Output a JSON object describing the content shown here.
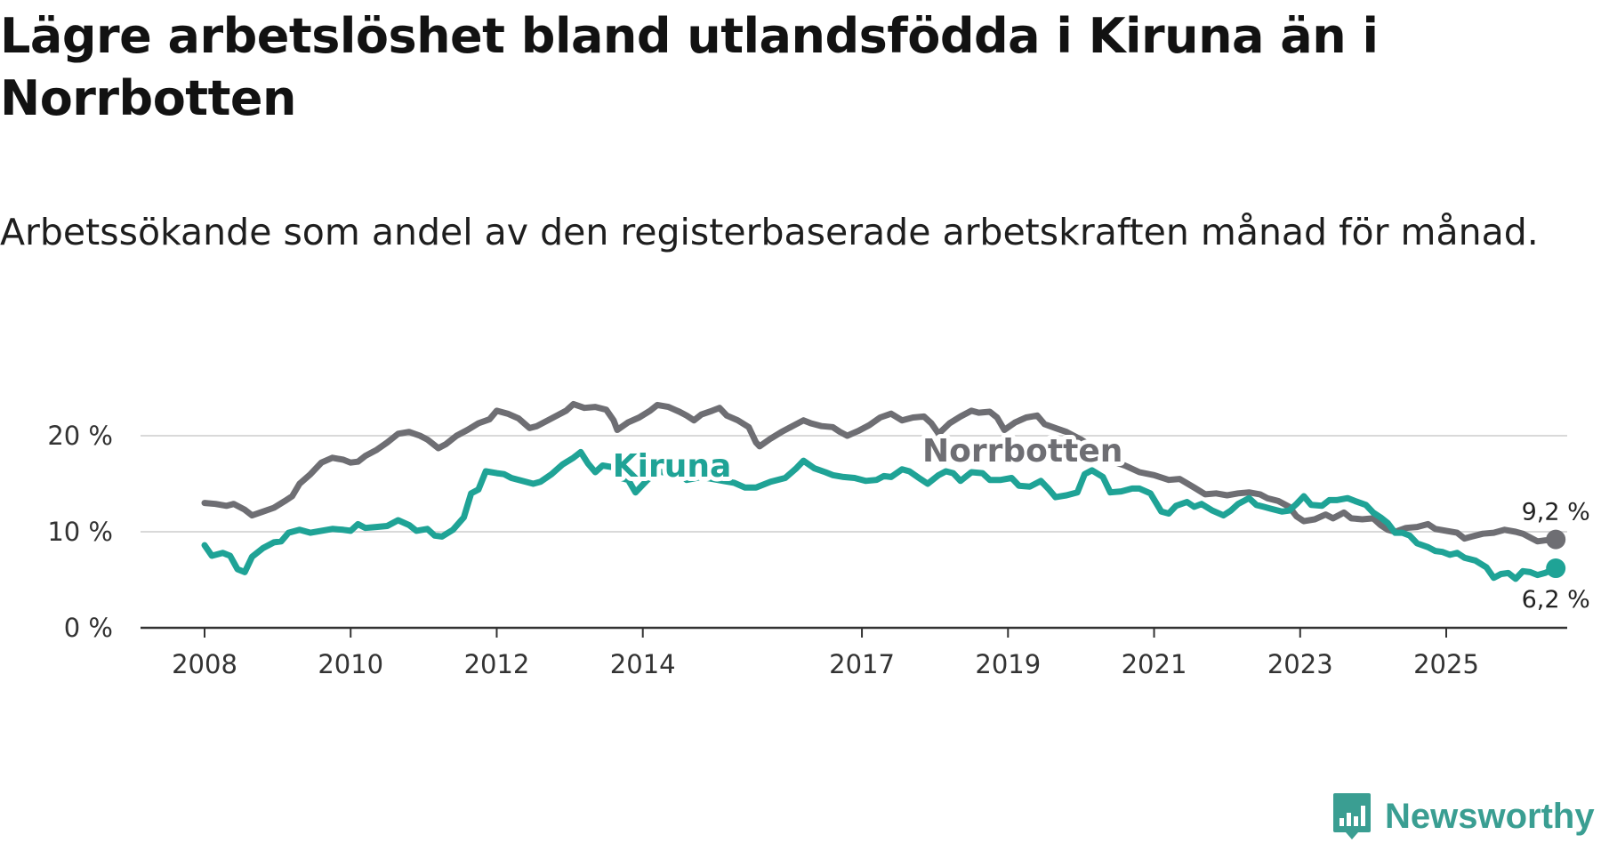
{
  "title": "Lägre arbetslöshet bland utlandsfödda i Kiruna än i Norrbotten",
  "subtitle": "Arbetssökande som andel av den registerbaserade arbetskraften månad för månad.",
  "brand": {
    "name": "Newsworthy",
    "icon": "newsworthy-logo-icon",
    "color": "#3a9e92"
  },
  "chart_data": {
    "type": "line",
    "title": "Lägre arbetslöshet bland utlandsfödda i Kiruna än i Norrbotten",
    "subtitle": "Arbetssökande som andel av den registerbaserade arbetskraften månad för månad.",
    "xlabel": "",
    "ylabel": "",
    "ylim": [
      0,
      22
    ],
    "xlim": [
      2007.6,
      2026.4
    ],
    "y_ticks": [
      {
        "value": 0,
        "label": "0 %"
      },
      {
        "value": 10,
        "label": "10 %"
      },
      {
        "value": 20,
        "label": "20 %"
      }
    ],
    "x_ticks": [
      {
        "value": 2008,
        "label": "2008"
      },
      {
        "value": 2010,
        "label": "2010"
      },
      {
        "value": 2012,
        "label": "2012"
      },
      {
        "value": 2014,
        "label": "2014"
      },
      {
        "value": 2017,
        "label": "2017"
      },
      {
        "value": 2019,
        "label": "2019"
      },
      {
        "value": 2021,
        "label": "2021"
      },
      {
        "value": 2023,
        "label": "2023"
      },
      {
        "value": 2025,
        "label": "2025"
      }
    ],
    "grid": "horizontal",
    "series": [
      {
        "name": "Norrbotten",
        "color": "#6e6e73",
        "label_at": 2019.2,
        "end_label": "9,2 %",
        "points": [
          [
            2008.0,
            13.0
          ],
          [
            2008.15,
            12.9
          ],
          [
            2008.3,
            12.7
          ],
          [
            2008.4,
            12.9
          ],
          [
            2008.55,
            12.3
          ],
          [
            2008.65,
            11.7
          ],
          [
            2008.8,
            12.1
          ],
          [
            2008.95,
            12.5
          ],
          [
            2009.1,
            13.2
          ],
          [
            2009.2,
            13.7
          ],
          [
            2009.3,
            15.0
          ],
          [
            2009.45,
            16.0
          ],
          [
            2009.6,
            17.2
          ],
          [
            2009.75,
            17.7
          ],
          [
            2009.9,
            17.5
          ],
          [
            2010.0,
            17.2
          ],
          [
            2010.1,
            17.3
          ],
          [
            2010.2,
            17.9
          ],
          [
            2010.35,
            18.5
          ],
          [
            2010.5,
            19.3
          ],
          [
            2010.65,
            20.2
          ],
          [
            2010.8,
            20.4
          ],
          [
            2010.95,
            20.0
          ],
          [
            2011.05,
            19.6
          ],
          [
            2011.2,
            18.7
          ],
          [
            2011.3,
            19.1
          ],
          [
            2011.45,
            20.0
          ],
          [
            2011.6,
            20.6
          ],
          [
            2011.75,
            21.3
          ],
          [
            2011.9,
            21.7
          ],
          [
            2012.0,
            22.6
          ],
          [
            2012.15,
            22.3
          ],
          [
            2012.3,
            21.8
          ],
          [
            2012.45,
            20.8
          ],
          [
            2012.55,
            21.0
          ],
          [
            2012.7,
            21.6
          ],
          [
            2012.85,
            22.2
          ],
          [
            2012.95,
            22.6
          ],
          [
            2013.05,
            23.3
          ],
          [
            2013.2,
            22.9
          ],
          [
            2013.35,
            23.0
          ],
          [
            2013.5,
            22.7
          ],
          [
            2013.6,
            21.6
          ],
          [
            2013.65,
            20.6
          ],
          [
            2013.8,
            21.4
          ],
          [
            2013.95,
            21.9
          ],
          [
            2014.1,
            22.6
          ],
          [
            2014.2,
            23.2
          ],
          [
            2014.35,
            23.0
          ],
          [
            2014.5,
            22.5
          ],
          [
            2014.6,
            22.1
          ],
          [
            2014.7,
            21.6
          ],
          [
            2014.8,
            22.2
          ],
          [
            2014.95,
            22.6
          ],
          [
            2015.05,
            22.9
          ],
          [
            2015.15,
            22.1
          ],
          [
            2015.3,
            21.6
          ],
          [
            2015.45,
            20.9
          ],
          [
            2015.55,
            19.3
          ],
          [
            2015.6,
            18.9
          ],
          [
            2015.75,
            19.7
          ],
          [
            2015.9,
            20.4
          ],
          [
            2016.05,
            21.0
          ],
          [
            2016.2,
            21.6
          ],
          [
            2016.3,
            21.3
          ],
          [
            2016.45,
            21.0
          ],
          [
            2016.6,
            20.9
          ],
          [
            2016.7,
            20.4
          ],
          [
            2016.8,
            20.0
          ],
          [
            2016.95,
            20.5
          ],
          [
            2017.1,
            21.1
          ],
          [
            2017.25,
            21.9
          ],
          [
            2017.4,
            22.3
          ],
          [
            2017.55,
            21.6
          ],
          [
            2017.7,
            21.9
          ],
          [
            2017.85,
            22.0
          ],
          [
            2017.95,
            21.3
          ],
          [
            2018.05,
            20.2
          ],
          [
            2018.2,
            21.3
          ],
          [
            2018.35,
            22.0
          ],
          [
            2018.5,
            22.6
          ],
          [
            2018.6,
            22.4
          ],
          [
            2018.75,
            22.5
          ],
          [
            2018.85,
            21.9
          ],
          [
            2018.95,
            20.6
          ],
          [
            2019.1,
            21.4
          ],
          [
            2019.25,
            21.9
          ],
          [
            2019.4,
            22.1
          ],
          [
            2019.5,
            21.2
          ],
          [
            2019.65,
            20.8
          ],
          [
            2019.8,
            20.4
          ],
          [
            2020.0,
            19.6
          ],
          [
            2020.2,
            18.6
          ],
          [
            2020.4,
            17.4
          ],
          [
            2020.6,
            16.9
          ],
          [
            2020.8,
            16.2
          ],
          [
            2021.0,
            15.9
          ],
          [
            2021.2,
            15.4
          ],
          [
            2021.35,
            15.5
          ],
          [
            2021.55,
            14.6
          ],
          [
            2021.7,
            13.9
          ],
          [
            2021.85,
            14.0
          ],
          [
            2022.0,
            13.8
          ],
          [
            2022.15,
            14.0
          ],
          [
            2022.3,
            14.1
          ],
          [
            2022.45,
            13.9
          ],
          [
            2022.55,
            13.5
          ],
          [
            2022.7,
            13.2
          ],
          [
            2022.85,
            12.6
          ],
          [
            2022.95,
            11.6
          ],
          [
            2023.05,
            11.1
          ],
          [
            2023.2,
            11.3
          ],
          [
            2023.35,
            11.8
          ],
          [
            2023.45,
            11.4
          ],
          [
            2023.6,
            12.0
          ],
          [
            2023.7,
            11.4
          ],
          [
            2023.85,
            11.3
          ],
          [
            2024.0,
            11.4
          ],
          [
            2024.1,
            10.7
          ],
          [
            2024.2,
            10.2
          ],
          [
            2024.3,
            10.0
          ],
          [
            2024.45,
            10.4
          ],
          [
            2024.6,
            10.5
          ],
          [
            2024.75,
            10.8
          ],
          [
            2024.85,
            10.3
          ],
          [
            2025.0,
            10.1
          ],
          [
            2025.15,
            9.9
          ],
          [
            2025.25,
            9.3
          ],
          [
            2025.35,
            9.5
          ],
          [
            2025.5,
            9.8
          ],
          [
            2025.65,
            9.9
          ],
          [
            2025.8,
            10.2
          ],
          [
            2025.95,
            10.0
          ],
          [
            2026.05,
            9.8
          ],
          [
            2026.15,
            9.4
          ],
          [
            2026.25,
            9.0
          ],
          [
            2026.35,
            9.1
          ],
          [
            2026.5,
            9.2
          ]
        ]
      },
      {
        "name": "Kiruna",
        "color": "#1fa396",
        "label_at": 2014.4,
        "end_label": "6,2 %",
        "points": [
          [
            2008.0,
            8.6
          ],
          [
            2008.1,
            7.5
          ],
          [
            2008.25,
            7.8
          ],
          [
            2008.35,
            7.5
          ],
          [
            2008.45,
            6.1
          ],
          [
            2008.55,
            5.8
          ],
          [
            2008.65,
            7.4
          ],
          [
            2008.8,
            8.3
          ],
          [
            2008.95,
            8.9
          ],
          [
            2009.05,
            9.0
          ],
          [
            2009.15,
            9.9
          ],
          [
            2009.3,
            10.2
          ],
          [
            2009.45,
            9.9
          ],
          [
            2009.6,
            10.1
          ],
          [
            2009.75,
            10.3
          ],
          [
            2009.9,
            10.2
          ],
          [
            2010.0,
            10.1
          ],
          [
            2010.1,
            10.8
          ],
          [
            2010.2,
            10.4
          ],
          [
            2010.35,
            10.5
          ],
          [
            2010.5,
            10.6
          ],
          [
            2010.65,
            11.2
          ],
          [
            2010.8,
            10.7
          ],
          [
            2010.9,
            10.1
          ],
          [
            2011.05,
            10.3
          ],
          [
            2011.15,
            9.6
          ],
          [
            2011.25,
            9.5
          ],
          [
            2011.4,
            10.2
          ],
          [
            2011.55,
            11.5
          ],
          [
            2011.65,
            14.0
          ],
          [
            2011.75,
            14.4
          ],
          [
            2011.85,
            16.3
          ],
          [
            2012.0,
            16.1
          ],
          [
            2012.1,
            16.0
          ],
          [
            2012.2,
            15.6
          ],
          [
            2012.35,
            15.3
          ],
          [
            2012.5,
            15.0
          ],
          [
            2012.6,
            15.2
          ],
          [
            2012.75,
            16.0
          ],
          [
            2012.9,
            17.0
          ],
          [
            2013.05,
            17.7
          ],
          [
            2013.15,
            18.3
          ],
          [
            2013.25,
            17.1
          ],
          [
            2013.35,
            16.2
          ],
          [
            2013.45,
            16.9
          ],
          [
            2013.6,
            16.7
          ],
          [
            2013.7,
            15.6
          ],
          [
            2013.8,
            15.4
          ],
          [
            2013.9,
            14.1
          ],
          [
            2014.05,
            15.3
          ],
          [
            2014.2,
            16.3
          ],
          [
            2014.35,
            16.1
          ],
          [
            2014.5,
            16.1
          ],
          [
            2014.6,
            15.4
          ],
          [
            2014.8,
            15.7
          ],
          [
            2014.95,
            15.5
          ],
          [
            2015.1,
            15.3
          ],
          [
            2015.25,
            15.1
          ],
          [
            2015.4,
            14.6
          ],
          [
            2015.55,
            14.6
          ],
          [
            2015.75,
            15.2
          ],
          [
            2015.95,
            15.6
          ],
          [
            2016.1,
            16.6
          ],
          [
            2016.2,
            17.4
          ],
          [
            2016.35,
            16.6
          ],
          [
            2016.5,
            16.2
          ],
          [
            2016.6,
            15.9
          ],
          [
            2016.75,
            15.7
          ],
          [
            2016.9,
            15.6
          ],
          [
            2017.05,
            15.3
          ],
          [
            2017.2,
            15.4
          ],
          [
            2017.3,
            15.8
          ],
          [
            2017.4,
            15.7
          ],
          [
            2017.55,
            16.5
          ],
          [
            2017.65,
            16.3
          ],
          [
            2017.8,
            15.5
          ],
          [
            2017.9,
            15.0
          ],
          [
            2018.05,
            15.9
          ],
          [
            2018.15,
            16.3
          ],
          [
            2018.25,
            16.1
          ],
          [
            2018.35,
            15.3
          ],
          [
            2018.5,
            16.2
          ],
          [
            2018.65,
            16.1
          ],
          [
            2018.75,
            15.4
          ],
          [
            2018.9,
            15.4
          ],
          [
            2019.05,
            15.6
          ],
          [
            2019.15,
            14.8
          ],
          [
            2019.3,
            14.7
          ],
          [
            2019.45,
            15.3
          ],
          [
            2019.55,
            14.5
          ],
          [
            2019.65,
            13.6
          ],
          [
            2019.8,
            13.8
          ],
          [
            2019.95,
            14.1
          ],
          [
            2020.05,
            16.0
          ],
          [
            2020.15,
            16.4
          ],
          [
            2020.3,
            15.7
          ],
          [
            2020.4,
            14.1
          ],
          [
            2020.55,
            14.2
          ],
          [
            2020.7,
            14.5
          ],
          [
            2020.8,
            14.5
          ],
          [
            2020.95,
            14.0
          ],
          [
            2021.1,
            12.1
          ],
          [
            2021.2,
            11.9
          ],
          [
            2021.3,
            12.7
          ],
          [
            2021.45,
            13.1
          ],
          [
            2021.55,
            12.6
          ],
          [
            2021.65,
            12.9
          ],
          [
            2021.8,
            12.2
          ],
          [
            2021.95,
            11.7
          ],
          [
            2022.05,
            12.2
          ],
          [
            2022.15,
            12.9
          ],
          [
            2022.3,
            13.5
          ],
          [
            2022.4,
            12.8
          ],
          [
            2022.5,
            12.6
          ],
          [
            2022.6,
            12.4
          ],
          [
            2022.75,
            12.1
          ],
          [
            2022.85,
            12.2
          ],
          [
            2022.95,
            12.9
          ],
          [
            2023.05,
            13.7
          ],
          [
            2023.15,
            12.8
          ],
          [
            2023.3,
            12.7
          ],
          [
            2023.4,
            13.3
          ],
          [
            2023.5,
            13.3
          ],
          [
            2023.65,
            13.5
          ],
          [
            2023.75,
            13.2
          ],
          [
            2023.9,
            12.8
          ],
          [
            2024.0,
            12.0
          ],
          [
            2024.1,
            11.5
          ],
          [
            2024.2,
            10.9
          ],
          [
            2024.3,
            9.9
          ],
          [
            2024.4,
            9.9
          ],
          [
            2024.5,
            9.6
          ],
          [
            2024.6,
            8.8
          ],
          [
            2024.75,
            8.4
          ],
          [
            2024.85,
            8.0
          ],
          [
            2024.95,
            7.9
          ],
          [
            2025.05,
            7.6
          ],
          [
            2025.15,
            7.8
          ],
          [
            2025.25,
            7.3
          ],
          [
            2025.4,
            7.0
          ],
          [
            2025.55,
            6.3
          ],
          [
            2025.65,
            5.2
          ],
          [
            2025.75,
            5.6
          ],
          [
            2025.85,
            5.7
          ],
          [
            2025.95,
            5.1
          ],
          [
            2026.05,
            5.9
          ],
          [
            2026.15,
            5.8
          ],
          [
            2026.25,
            5.5
          ],
          [
            2026.35,
            5.7
          ],
          [
            2026.5,
            6.2
          ]
        ]
      }
    ]
  }
}
